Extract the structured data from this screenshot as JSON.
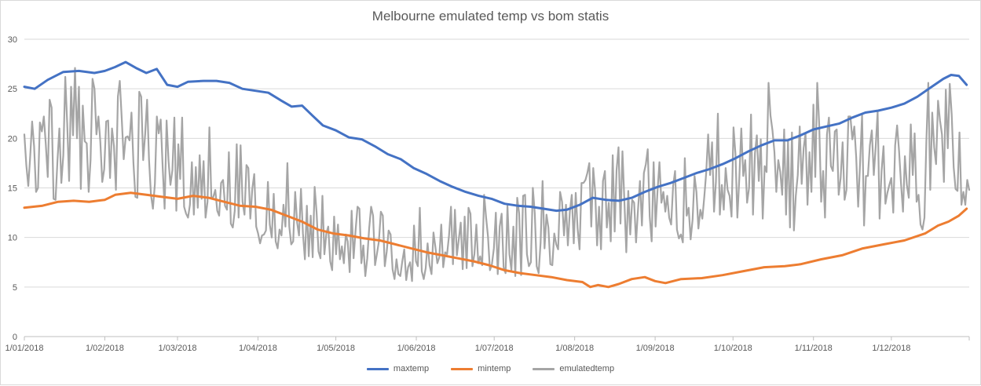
{
  "chart_data": {
    "type": "line",
    "title": "Melbourne emulated temp vs bom statis",
    "xlabel": "",
    "ylabel": "",
    "ylim": [
      0,
      30
    ],
    "yticks": [
      "0",
      "5",
      "10",
      "15",
      "20",
      "25",
      "30"
    ],
    "x_tick_labels": [
      "1/01/2018",
      "1/02/2018",
      "1/03/2018",
      "1/04/2018",
      "1/05/2018",
      "1/06/2018",
      "1/07/2018",
      "1/08/2018",
      "1/09/2018",
      "1/10/2018",
      "1/11/2018",
      "1/12/2018"
    ],
    "x_tick_day_of_year": [
      1,
      32,
      60,
      91,
      121,
      152,
      182,
      213,
      244,
      274,
      305,
      335
    ],
    "x_range_days": [
      1,
      365
    ],
    "grid": "horizontal",
    "legend_position": "bottom",
    "series": [
      {
        "name": "maxtemp",
        "color": "#4472c4",
        "points": [
          [
            1,
            25.2
          ],
          [
            5,
            25.0
          ],
          [
            10,
            25.9
          ],
          [
            16,
            26.7
          ],
          [
            22,
            26.8
          ],
          [
            28,
            26.6
          ],
          [
            32,
            26.8
          ],
          [
            36,
            27.2
          ],
          [
            40,
            27.7
          ],
          [
            44,
            27.1
          ],
          [
            48,
            26.6
          ],
          [
            52,
            27.0
          ],
          [
            56,
            25.4
          ],
          [
            60,
            25.2
          ],
          [
            64,
            25.7
          ],
          [
            70,
            25.8
          ],
          [
            75,
            25.8
          ],
          [
            80,
            25.6
          ],
          [
            85,
            25.0
          ],
          [
            90,
            24.8
          ],
          [
            95,
            24.6
          ],
          [
            100,
            23.8
          ],
          [
            104,
            23.2
          ],
          [
            108,
            23.3
          ],
          [
            112,
            22.3
          ],
          [
            116,
            21.3
          ],
          [
            121,
            20.8
          ],
          [
            126,
            20.1
          ],
          [
            131,
            19.9
          ],
          [
            136,
            19.2
          ],
          [
            141,
            18.4
          ],
          [
            146,
            17.9
          ],
          [
            151,
            17.0
          ],
          [
            156,
            16.4
          ],
          [
            161,
            15.7
          ],
          [
            166,
            15.1
          ],
          [
            171,
            14.6
          ],
          [
            176,
            14.2
          ],
          [
            181,
            13.9
          ],
          [
            186,
            13.4
          ],
          [
            191,
            13.2
          ],
          [
            196,
            13.1
          ],
          [
            201,
            12.9
          ],
          [
            206,
            12.7
          ],
          [
            210,
            12.8
          ],
          [
            215,
            13.3
          ],
          [
            220,
            14.0
          ],
          [
            225,
            13.8
          ],
          [
            230,
            13.7
          ],
          [
            235,
            14.0
          ],
          [
            240,
            14.6
          ],
          [
            245,
            15.1
          ],
          [
            250,
            15.5
          ],
          [
            255,
            16.0
          ],
          [
            260,
            16.5
          ],
          [
            265,
            16.9
          ],
          [
            270,
            17.4
          ],
          [
            275,
            18.0
          ],
          [
            280,
            18.7
          ],
          [
            285,
            19.3
          ],
          [
            290,
            19.8
          ],
          [
            295,
            19.8
          ],
          [
            300,
            20.3
          ],
          [
            305,
            20.9
          ],
          [
            310,
            21.2
          ],
          [
            315,
            21.5
          ],
          [
            320,
            22.1
          ],
          [
            325,
            22.6
          ],
          [
            330,
            22.8
          ],
          [
            335,
            23.1
          ],
          [
            340,
            23.5
          ],
          [
            345,
            24.2
          ],
          [
            350,
            25.1
          ],
          [
            355,
            26.0
          ],
          [
            358,
            26.4
          ],
          [
            361,
            26.3
          ],
          [
            364,
            25.4
          ]
        ]
      },
      {
        "name": "mintemp",
        "color": "#ed7d31",
        "points": [
          [
            1,
            13.0
          ],
          [
            8,
            13.2
          ],
          [
            14,
            13.6
          ],
          [
            20,
            13.7
          ],
          [
            26,
            13.6
          ],
          [
            32,
            13.8
          ],
          [
            36,
            14.3
          ],
          [
            42,
            14.5
          ],
          [
            48,
            14.3
          ],
          [
            54,
            14.1
          ],
          [
            60,
            13.9
          ],
          [
            66,
            14.2
          ],
          [
            72,
            14.0
          ],
          [
            78,
            13.6
          ],
          [
            84,
            13.2
          ],
          [
            90,
            13.1
          ],
          [
            96,
            12.8
          ],
          [
            102,
            12.2
          ],
          [
            108,
            11.6
          ],
          [
            114,
            10.8
          ],
          [
            120,
            10.4
          ],
          [
            126,
            10.2
          ],
          [
            132,
            9.9
          ],
          [
            138,
            9.7
          ],
          [
            144,
            9.3
          ],
          [
            150,
            8.9
          ],
          [
            156,
            8.5
          ],
          [
            162,
            8.2
          ],
          [
            168,
            7.9
          ],
          [
            174,
            7.6
          ],
          [
            180,
            7.2
          ],
          [
            186,
            6.7
          ],
          [
            192,
            6.4
          ],
          [
            198,
            6.2
          ],
          [
            204,
            6.0
          ],
          [
            210,
            5.7
          ],
          [
            216,
            5.5
          ],
          [
            219,
            5.0
          ],
          [
            222,
            5.2
          ],
          [
            226,
            5.0
          ],
          [
            230,
            5.3
          ],
          [
            235,
            5.8
          ],
          [
            240,
            6.0
          ],
          [
            244,
            5.6
          ],
          [
            248,
            5.4
          ],
          [
            254,
            5.8
          ],
          [
            262,
            5.9
          ],
          [
            270,
            6.2
          ],
          [
            278,
            6.6
          ],
          [
            286,
            7.0
          ],
          [
            294,
            7.1
          ],
          [
            300,
            7.3
          ],
          [
            308,
            7.8
          ],
          [
            316,
            8.2
          ],
          [
            324,
            8.9
          ],
          [
            332,
            9.3
          ],
          [
            340,
            9.7
          ],
          [
            348,
            10.4
          ],
          [
            353,
            11.2
          ],
          [
            357,
            11.6
          ],
          [
            361,
            12.2
          ],
          [
            364,
            12.9
          ]
        ]
      },
      {
        "name": "emulatedtemp",
        "color": "#a5a5a5",
        "values": [
          20.4,
          17.3,
          15.2,
          18.1,
          21.7,
          19.2,
          14.6,
          15.0,
          21.6,
          20.7,
          22.2,
          19.4,
          16.1,
          23.9,
          23.1,
          13.9,
          13.8,
          17.8,
          21.0,
          15.5,
          18.3,
          26.2,
          21.4,
          15.7,
          25.2,
          20.3,
          27.1,
          20.0,
          25.2,
          14.9,
          23.3,
          19.7,
          19.5,
          14.6,
          17.8,
          26.0,
          25.0,
          20.4,
          22.2,
          19.7,
          15.6,
          16.9,
          21.7,
          21.8,
          16.0,
          21.0,
          19.2,
          14.8,
          24.2,
          25.8,
          22.0,
          17.9,
          20.1,
          20.2,
          19.8,
          22.6,
          17.5,
          14.1,
          14.0,
          24.7,
          24.2,
          17.8,
          20.4,
          23.9,
          17.9,
          14.3,
          12.9,
          15.4,
          22.2,
          20.5,
          21.9,
          17.1,
          12.9,
          21.8,
          17.7,
          15.3,
          16.8,
          22.1,
          12.7,
          19.4,
          15.9,
          22.1,
          13.1,
          12.4,
          12.0,
          13.3,
          17.6,
          12.3,
          17.1,
          13.0,
          18.3,
          13.9,
          17.7,
          12.0,
          13.6,
          21.1,
          14.0,
          14.1,
          14.8,
          12.7,
          12.2,
          15.5,
          15.8,
          13.2,
          12.8,
          18.6,
          11.4,
          11.0,
          12.7,
          19.4,
          12.0,
          19.3,
          13.6,
          12.3,
          17.3,
          17.0,
          11.9,
          14.9,
          16.4,
          11.1,
          10.4,
          9.4,
          10.2,
          10.3,
          10.7,
          15.6,
          11.3,
          10.0,
          14.4,
          9.6,
          8.9,
          10.8,
          10.2,
          13.3,
          11.1,
          17.5,
          11.1,
          9.3,
          9.6,
          14.6,
          11.5,
          10.2,
          14.9,
          10.4,
          7.8,
          13.2,
          8.1,
          12.2,
          8.0,
          15.1,
          12.5,
          8.6,
          7.9,
          14.2,
          8.3,
          10.4,
          11.1,
          7.6,
          6.7,
          12.1,
          8.3,
          11.3,
          7.8,
          9.1,
          7.4,
          10.3,
          9.6,
          6.5,
          12.7,
          7.9,
          10.7,
          13.1,
          12.9,
          7.4,
          9.2,
          6.1,
          7.9,
          10.9,
          13.1,
          12.2,
          7.2,
          8.4,
          9.6,
          12.6,
          12.2,
          7.1,
          8.6,
          10.7,
          10.3,
          6.8,
          5.8,
          7.8,
          6.3,
          6.1,
          7.6,
          8.8,
          5.7,
          7.0,
          7.5,
          5.6,
          11.2,
          7.6,
          7.1,
          13.0,
          6.6,
          5.8,
          6.9,
          9.4,
          7.2,
          6.3,
          10.5,
          9.0,
          7.4,
          8.0,
          11.3,
          7.0,
          8.5,
          8.3,
          10.2,
          13.1,
          7.3,
          12.8,
          8.2,
          9.8,
          11.5,
          6.8,
          12.1,
          6.9,
          13.0,
          12.4,
          7.1,
          8.3,
          11.3,
          7.4,
          8.1,
          7.2,
          14.3,
          12.0,
          10.1,
          6.7,
          7.3,
          8.9,
          12.5,
          6.3,
          11.1,
          12.4,
          7.0,
          6.4,
          13.2,
          8.3,
          6.7,
          11.1,
          6.1,
          14.0,
          12.4,
          6.2,
          14.2,
          14.3,
          8.3,
          7.1,
          7.5,
          15.0,
          12.4,
          7.1,
          6.4,
          9.5,
          15.7,
          8.9,
          12.3,
          11.0,
          7.3,
          7.2,
          10.4,
          9.3,
          8.8,
          14.6,
          13.6,
          10.2,
          13.3,
          9.2,
          12.6,
          14.3,
          9.4,
          14.5,
          10.9,
          8.8,
          15.5,
          15.5,
          15.8,
          16.5,
          17.5,
          11.1,
          17.0,
          14.6,
          9.2,
          13.1,
          8.8,
          15.7,
          16.7,
          11.0,
          13.5,
          9.6,
          18.3,
          10.6,
          16.8,
          19.1,
          11.4,
          18.7,
          13.6,
          8.5,
          14.7,
          10.3,
          13.8,
          13.5,
          9.5,
          12.8,
          15.7,
          11.2,
          16.5,
          17.4,
          18.9,
          12.1,
          9.6,
          17.6,
          11.1,
          14.6,
          17.6,
          13.5,
          14.6,
          12.6,
          14.2,
          12.0,
          11.3,
          15.2,
          16.7,
          10.8,
          9.9,
          10.3,
          9.5,
          18.0,
          12.2,
          13.0,
          9.8,
          11.8,
          16.2,
          14.6,
          10.9,
          12.8,
          11.9,
          14.1,
          16.5,
          20.4,
          16.3,
          19.6,
          12.6,
          15.6,
          22.5,
          12.3,
          15.3,
          12.8,
          17.0,
          14.8,
          14.2,
          12.1,
          21.1,
          18.4,
          12.0,
          16.0,
          21.0,
          16.2,
          17.8,
          13.5,
          15.0,
          22.4,
          12.3,
          18.5,
          20.3,
          15.7,
          19.9,
          11.9,
          17.2,
          16.6,
          25.6,
          22.3,
          20.8,
          18.6,
          14.6,
          17.8,
          16.6,
          14.3,
          20.9,
          12.3,
          19.8,
          11.0,
          20.6,
          10.7,
          14.2,
          16.3,
          21.2,
          15.4,
          19.0,
          20.5,
          13.3,
          18.6,
          14.6,
          23.4,
          16.1,
          25.6,
          21.4,
          13.6,
          16.7,
          12.0,
          20.4,
          22.1,
          17.2,
          16.7,
          20.7,
          20.9,
          14.3,
          16.0,
          19.6,
          13.8,
          14.8,
          22.2,
          22.2,
          19.9,
          21.2,
          18.1,
          13.1,
          17.6,
          22.4,
          11.2,
          16.2,
          16.2,
          19.3,
          20.8,
          16.3,
          19.1,
          22.7,
          11.9,
          16.7,
          19.2,
          13.4,
          14.5,
          15.3,
          16.0,
          12.5,
          19.3,
          21.3,
          18.7,
          15.4,
          12.6,
          18.2,
          15.3,
          14.0,
          21.4,
          16.3,
          20.5,
          13.6,
          14.3,
          11.3,
          10.8,
          12.0,
          19.6,
          25.6,
          14.8,
          22.6,
          19.1,
          17.4,
          23.8,
          21.8,
          20.4,
          15.6,
          24.9,
          19.0,
          25.5,
          22.4,
          17.1,
          14.9,
          14.7,
          20.6,
          13.3,
          14.6,
          13.3,
          15.8,
          14.8
        ]
      }
    ]
  }
}
